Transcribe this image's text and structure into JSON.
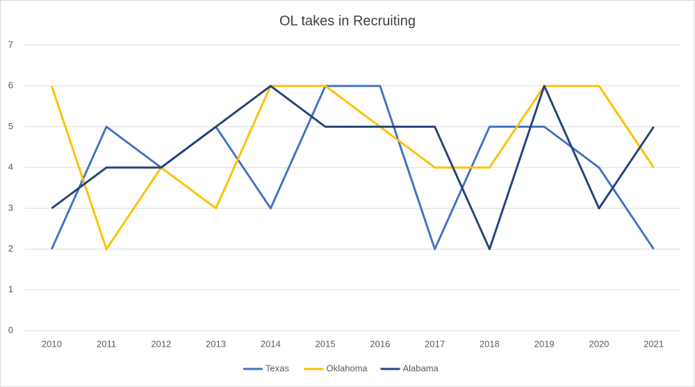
{
  "chart_data": {
    "type": "line",
    "title": "OL takes in Recruiting",
    "categories": [
      "2010",
      "2011",
      "2012",
      "2013",
      "2014",
      "2015",
      "2016",
      "2017",
      "2018",
      "2019",
      "2020",
      "2021"
    ],
    "series": [
      {
        "name": "Texas",
        "color": "#4472c4",
        "values": [
          2,
          5,
          4,
          5,
          3,
          6,
          6,
          2,
          5,
          5,
          4,
          2
        ]
      },
      {
        "name": "Oklahoma",
        "color": "#ffc000",
        "values": [
          6,
          2,
          4,
          3,
          6,
          6,
          5,
          4,
          4,
          6,
          6,
          4
        ]
      },
      {
        "name": "Alabama",
        "color": "#264478",
        "values": [
          3,
          4,
          4,
          5,
          6,
          5,
          5,
          5,
          2,
          6,
          3,
          5
        ]
      }
    ],
    "ylim": [
      0,
      7
    ],
    "yticks": [
      0,
      1,
      2,
      3,
      4,
      5,
      6,
      7
    ],
    "grid": true,
    "legend": "bottom"
  }
}
